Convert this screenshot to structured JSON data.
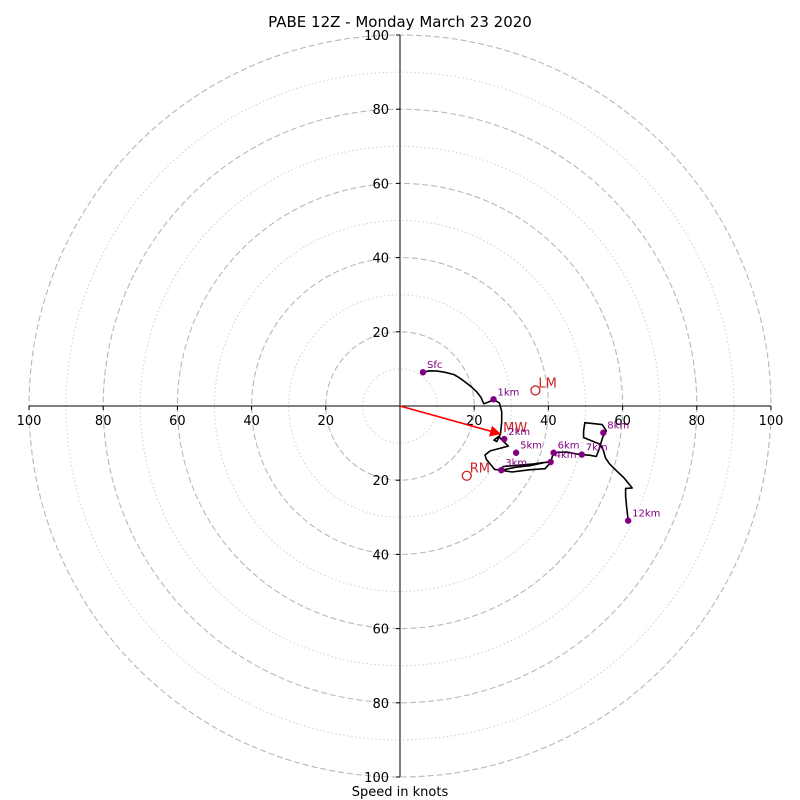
{
  "chart_data": {
    "type": "hodograph",
    "title": "PABE 12Z - Monday March 23 2020",
    "xlabel": "Speed in knots",
    "units": "knots",
    "range": [
      -100,
      100
    ],
    "rings_major": [
      20,
      40,
      60,
      80,
      100
    ],
    "rings_minor": [
      10,
      30,
      50,
      70,
      90
    ],
    "grid": true,
    "tick_labels": {
      "x_left": [
        "100",
        "80",
        "60",
        "40",
        "20"
      ],
      "x_right": [
        "20",
        "40",
        "60",
        "80",
        "100"
      ],
      "y_up": [
        "20",
        "40",
        "60",
        "80",
        "100"
      ],
      "y_down": [
        "20",
        "40",
        "60",
        "80",
        "100"
      ]
    },
    "trace": [
      [
        6.2,
        9.1
      ],
      [
        8,
        9.5
      ],
      [
        10,
        9.4
      ],
      [
        12,
        9.1
      ],
      [
        14.5,
        8.5
      ],
      [
        16,
        7.6
      ],
      [
        17.8,
        6.3
      ],
      [
        19.4,
        5
      ],
      [
        20.8,
        3.7
      ],
      [
        21.9,
        2.2
      ],
      [
        22.6,
        0.6
      ],
      [
        24.2,
        1.2
      ],
      [
        25.2,
        1.8
      ],
      [
        26.8,
        0.8
      ],
      [
        27.4,
        -1.5
      ],
      [
        27.4,
        -4.3
      ],
      [
        27.1,
        -7.5
      ],
      [
        26.1,
        -9.6
      ],
      [
        25.3,
        -9.2
      ],
      [
        26.6,
        -8.2
      ],
      [
        27.8,
        -9.5
      ],
      [
        29.2,
        -10.8
      ],
      [
        24.3,
        -12.1
      ],
      [
        22.9,
        -13.2
      ],
      [
        23.3,
        -14.4
      ],
      [
        25.5,
        -17.1
      ],
      [
        27.3,
        -17.3
      ],
      [
        31.3,
        -16.5
      ],
      [
        35,
        -16.1
      ],
      [
        39.2,
        -15.2
      ],
      [
        41,
        -14.8
      ],
      [
        39.1,
        -16.9
      ],
      [
        34.8,
        -17.2
      ],
      [
        30.2,
        -17.8
      ],
      [
        27.2,
        -17.3
      ],
      [
        27.8,
        -16.3
      ],
      [
        30.6,
        -16.1
      ],
      [
        36,
        -15.6
      ],
      [
        38.1,
        -15.3
      ],
      [
        40.6,
        -15.1
      ],
      [
        41.4,
        -12.6
      ],
      [
        45,
        -12.4
      ],
      [
        47.5,
        -12.9
      ],
      [
        49,
        -13.1
      ],
      [
        51.3,
        -13.3
      ],
      [
        52.9,
        -13.6
      ],
      [
        53.7,
        -11.6
      ],
      [
        54.6,
        -8.5
      ],
      [
        55.3,
        -7.2
      ],
      [
        55.6,
        -6.7
      ],
      [
        54.5,
        -5
      ],
      [
        49.8,
        -4.5
      ],
      [
        49.5,
        -6.8
      ],
      [
        49.5,
        -8.5
      ],
      [
        53.9,
        -10.3
      ],
      [
        54.8,
        -11.9
      ],
      [
        55.4,
        -14
      ],
      [
        56.5,
        -15.6
      ],
      [
        58.3,
        -17.4
      ],
      [
        60.4,
        -19.4
      ],
      [
        62.6,
        -22.1
      ],
      [
        60.8,
        -22.2
      ],
      [
        60.8,
        -24.3
      ],
      [
        61.1,
        -27.4
      ],
      [
        61.5,
        -30.9
      ]
    ],
    "height_markers": [
      {
        "label": "Sfc",
        "u": 6.2,
        "v": 9.1
      },
      {
        "label": "1km",
        "u": 25.2,
        "v": 1.8
      },
      {
        "label": "2km",
        "u": 28.1,
        "v": -8.9
      },
      {
        "label": "3km",
        "u": 27.3,
        "v": -17.3
      },
      {
        "label": "4km",
        "u": 40.6,
        "v": -15.1
      },
      {
        "label": "5km",
        "u": 31.3,
        "v": -12.6
      },
      {
        "label": "6km",
        "u": 41.4,
        "v": -12.6
      },
      {
        "label": "7km",
        "u": 49,
        "v": -13.1
      },
      {
        "label": "8km",
        "u": 54.8,
        "v": -7.2
      },
      {
        "label": "12km",
        "u": 61.5,
        "v": -30.9
      }
    ],
    "mean_wind": {
      "label": "MW",
      "u": 27,
      "v": -7.5
    },
    "storm_motion": [
      {
        "label": "LM",
        "u": 36.5,
        "v": 4.2
      },
      {
        "label": "RM",
        "u": 18,
        "v": -18.8
      }
    ],
    "colors": {
      "trace": "#000000",
      "height_marker": "#800080",
      "mean_wind": "#ff0000",
      "storm_motion": "#cc2222",
      "grid": "#b8b8b8",
      "axis": "#000000"
    }
  }
}
